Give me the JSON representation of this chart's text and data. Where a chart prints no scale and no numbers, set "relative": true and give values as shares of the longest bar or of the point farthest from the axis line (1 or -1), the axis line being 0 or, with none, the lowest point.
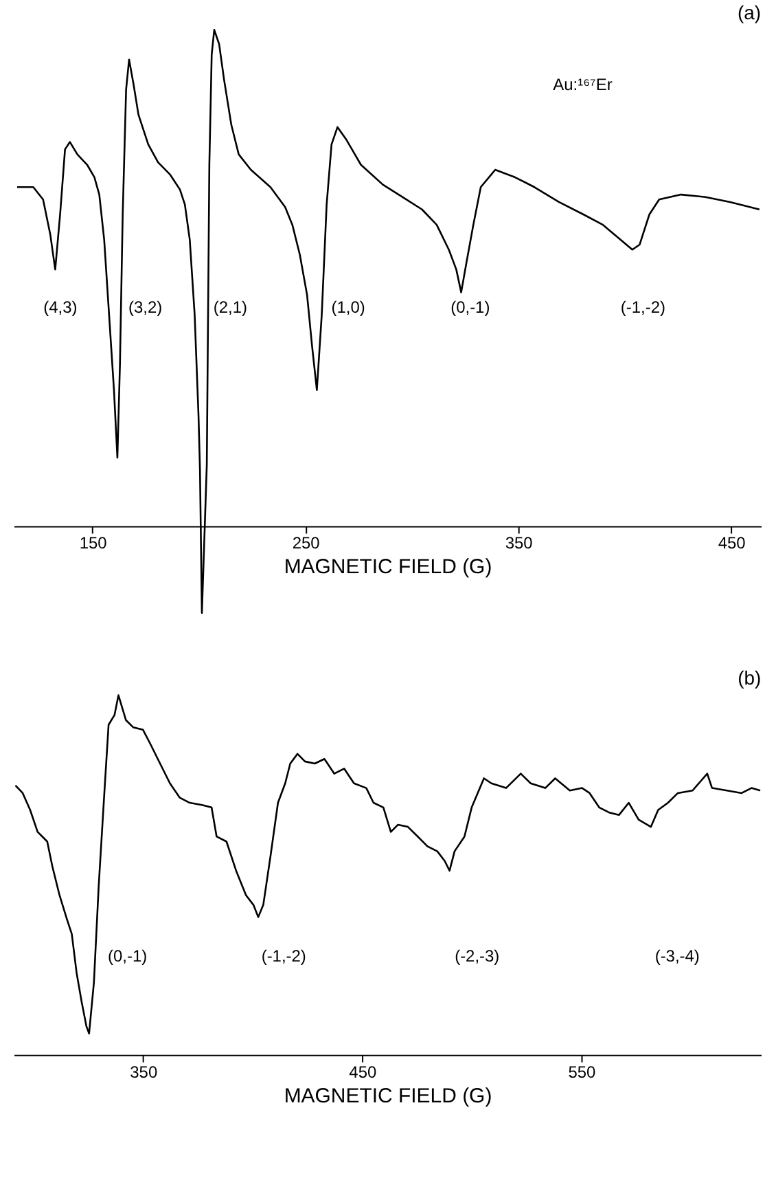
{
  "chart_data": [
    {
      "type": "line",
      "title": "(a)",
      "xlabel": "MAGNETIC FIELD (G)",
      "relative": true,
      "xlim": [
        113,
        464
      ],
      "xticks": [
        150,
        250,
        350,
        450
      ],
      "series": [
        {
          "color": "#000000",
          "x": [
            114.6,
            122.2,
            126.8,
            130.2,
            132.5,
            134.8,
            137.1,
            139.4,
            142.9,
            147.5,
            150.9,
            153.2,
            155.5,
            157.8,
            160.1,
            161.7,
            162.9,
            164.2,
            165.8,
            167.2,
            169.3,
            171.6,
            176.2,
            180.8,
            186.5,
            191.1,
            193.4,
            195.7,
            198.0,
            199.8,
            200.5,
            201.4,
            203.7,
            204.9,
            206.0,
            207.2,
            209.5,
            211.8,
            215.2,
            218.7,
            224.4,
            233.6,
            240.5,
            243.9,
            247.4,
            250.8,
            253.1,
            255.4,
            257.7,
            260.0,
            262.3,
            265.1,
            269.2,
            276.1,
            286.4,
            295.6,
            304.8,
            311.7,
            317.4,
            320.9,
            323.2,
            325.5,
            328.9,
            332.4,
            339.2,
            348.4,
            357.6,
            369.1,
            380.6,
            389.8,
            396.7,
            403.6,
            407.0,
            411.6,
            416.2,
            426.5,
            438.0,
            449.5,
            463.3
          ],
          "values": [
            0.683,
            0.683,
            0.658,
            0.587,
            0.517,
            0.628,
            0.759,
            0.774,
            0.749,
            0.728,
            0.703,
            0.668,
            0.577,
            0.426,
            0.274,
            0.138,
            0.325,
            0.628,
            0.88,
            0.94,
            0.89,
            0.829,
            0.769,
            0.733,
            0.708,
            0.678,
            0.648,
            0.577,
            0.426,
            0.224,
            0.113,
            -0.175,
            0.123,
            0.728,
            0.95,
            1.0,
            0.971,
            0.9,
            0.809,
            0.749,
            0.718,
            0.683,
            0.643,
            0.607,
            0.547,
            0.466,
            0.365,
            0.274,
            0.426,
            0.648,
            0.769,
            0.804,
            0.779,
            0.728,
            0.688,
            0.663,
            0.638,
            0.607,
            0.557,
            0.517,
            0.471,
            0.527,
            0.607,
            0.683,
            0.718,
            0.703,
            0.683,
            0.653,
            0.628,
            0.607,
            0.582,
            0.557,
            0.567,
            0.628,
            0.658,
            0.668,
            0.663,
            0.653,
            0.638
          ]
        }
      ],
      "annotations": [
        "Au:¹⁶⁷Er",
        "(4,3)",
        "(3,2)",
        "(2,1)",
        "(1,0)",
        "(0,-1)",
        "(-1,-2)"
      ]
    },
    {
      "type": "line",
      "title": "(b)",
      "xlabel": "MAGNETIC FIELD (G)",
      "relative": true,
      "xlim": [
        291,
        632
      ],
      "xticks": [
        350,
        450,
        550
      ],
      "series": [
        {
          "color": "#000000",
          "x": [
            291.8,
            295.1,
            298.5,
            301.9,
            306.3,
            308.6,
            311.9,
            315.3,
            317.5,
            319.7,
            322.0,
            324.2,
            325.4,
            327.6,
            329.8,
            332.5,
            334.3,
            337.0,
            338.8,
            342.2,
            345.5,
            350.0,
            353.4,
            357.8,
            362.3,
            366.8,
            371.3,
            376.9,
            381.3,
            383.6,
            388.1,
            392.5,
            397.0,
            400.4,
            402.6,
            404.9,
            408.2,
            411.6,
            414.9,
            417.2,
            420.5,
            423.9,
            428.4,
            432.8,
            437.3,
            441.8,
            446.3,
            451.9,
            455.2,
            459.7,
            463.1,
            466.4,
            470.9,
            475.4,
            479.8,
            484.3,
            487.7,
            489.9,
            492.2,
            496.7,
            500.0,
            505.6,
            509.0,
            515.7,
            522.4,
            526.9,
            533.6,
            538.1,
            544.8,
            550.4,
            553.8,
            558.2,
            562.7,
            567.2,
            571.7,
            576.2,
            581.8,
            585.1,
            589.6,
            594.1,
            600.8,
            607.5,
            609.7,
            616.5,
            623.2,
            627.7,
            631.7
          ],
          "values": [
            0.749,
            0.728,
            0.681,
            0.62,
            0.593,
            0.525,
            0.444,
            0.377,
            0.336,
            0.228,
            0.147,
            0.079,
            0.059,
            0.201,
            0.471,
            0.742,
            0.918,
            0.945,
            1.0,
            0.931,
            0.911,
            0.904,
            0.864,
            0.81,
            0.755,
            0.715,
            0.701,
            0.695,
            0.688,
            0.607,
            0.593,
            0.512,
            0.444,
            0.417,
            0.383,
            0.417,
            0.553,
            0.701,
            0.755,
            0.81,
            0.837,
            0.816,
            0.81,
            0.823,
            0.782,
            0.796,
            0.755,
            0.742,
            0.701,
            0.688,
            0.62,
            0.64,
            0.634,
            0.607,
            0.58,
            0.566,
            0.539,
            0.512,
            0.566,
            0.607,
            0.688,
            0.769,
            0.755,
            0.742,
            0.782,
            0.755,
            0.742,
            0.769,
            0.735,
            0.742,
            0.728,
            0.688,
            0.674,
            0.667,
            0.701,
            0.654,
            0.634,
            0.681,
            0.701,
            0.728,
            0.735,
            0.782,
            0.742,
            0.735,
            0.728,
            0.742,
            0.735
          ]
        }
      ],
      "annotations": [
        "(0,-1)",
        "(-1,-2)",
        "(-2,-3)",
        "(-3,-4)"
      ]
    }
  ]
}
